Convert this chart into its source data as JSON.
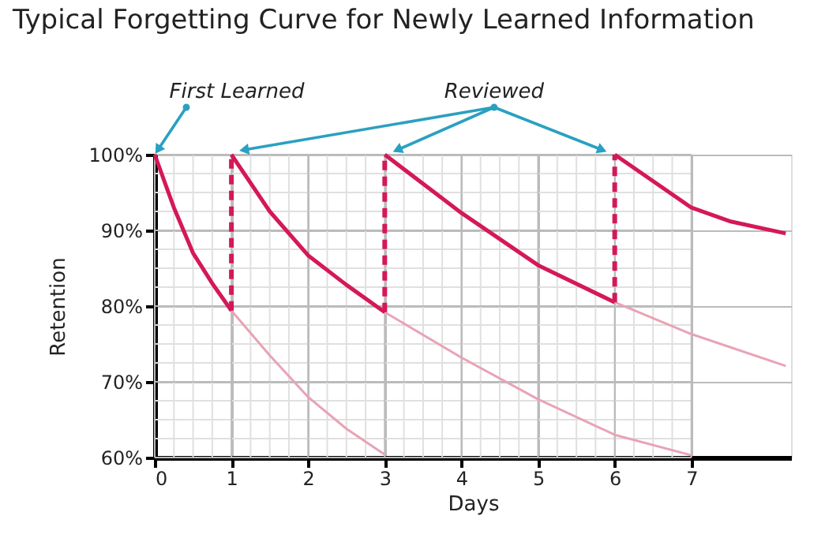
{
  "chart_data": {
    "type": "line",
    "title": "Typical Forgetting Curve for Newly Learned Information",
    "xlabel": "Days",
    "ylabel": "Retention",
    "xlim": [
      0,
      8.3
    ],
    "ylim": [
      60,
      100
    ],
    "xticks": [
      0,
      {
        "value": 0.25,
        "label": null
      },
      {
        "value": 0.5,
        "label": null
      },
      {
        "value": 0.75,
        "label": null
      },
      1,
      {
        "value": 1.25,
        "label": null
      },
      {
        "value": 1.5,
        "label": null
      },
      {
        "value": 1.75,
        "label": null
      },
      2,
      {
        "value": 2.25,
        "label": null
      },
      {
        "value": 2.5,
        "label": null
      },
      {
        "value": 2.75,
        "label": null
      },
      3,
      {
        "value": 3.25,
        "label": null
      },
      {
        "value": 3.5,
        "label": null
      },
      {
        "value": 3.75,
        "label": null
      },
      4,
      {
        "value": 4.25,
        "label": null
      },
      {
        "value": 4.5,
        "label": null
      },
      {
        "value": 4.75,
        "label": null
      },
      5,
      {
        "value": 5.25,
        "label": null
      },
      {
        "value": 5.5,
        "label": null
      },
      {
        "value": 5.75,
        "label": null
      },
      6,
      {
        "value": 6.25,
        "label": null
      },
      {
        "value": 6.5,
        "label": null
      },
      {
        "value": 6.75,
        "label": null
      },
      7
    ],
    "yticks": [
      {
        "value": 60,
        "label": "60%"
      },
      {
        "value": 62.5,
        "label": null
      },
      {
        "value": 65,
        "label": null
      },
      {
        "value": 67.5,
        "label": null
      },
      {
        "value": 70,
        "label": "70%"
      },
      {
        "value": 72.5,
        "label": null
      },
      {
        "value": 75,
        "label": null
      },
      {
        "value": 77.5,
        "label": null
      },
      {
        "value": 80,
        "label": "80%"
      },
      {
        "value": 82.5,
        "label": null
      },
      {
        "value": 85,
        "label": null
      },
      {
        "value": 87.5,
        "label": null
      },
      {
        "value": 90,
        "label": "90%"
      },
      {
        "value": 92.5,
        "label": null
      },
      {
        "value": 95,
        "label": null
      },
      {
        "value": 97.5,
        "label": null
      },
      {
        "value": 100,
        "label": "100%"
      }
    ],
    "grid": true,
    "line_style": "solid",
    "marker": "none",
    "annotations": [
      {
        "text": "First Learned",
        "x": 0,
        "y": 100
      },
      "Reviewed"
    ],
    "series": [
      {
        "color": "#e8a3b5",
        "x": [
          1,
          1.5,
          2,
          2.5,
          3
        ],
        "values": [
          79.4,
          73.5,
          68,
          63.8,
          60.4
        ]
      },
      {
        "color": "#e8a3b5",
        "x": [
          3,
          4,
          5,
          6,
          7
        ],
        "values": [
          79.2,
          73.2,
          67.7,
          63,
          60.3
        ]
      },
      {
        "color": "#e8a3b5",
        "x": [
          6,
          7,
          8.23
        ],
        "values": [
          80.5,
          76.3,
          72.1
        ]
      },
      {
        "color": "#d4185a",
        "x": [
          0,
          0.25,
          0.5,
          0.75,
          1
        ],
        "values": [
          100,
          93,
          87,
          83,
          79.4
        ]
      },
      {
        "color": "#d4185a",
        "x": [
          1,
          1.5,
          2,
          2.5,
          3
        ],
        "values": [
          100,
          92.5,
          86.7,
          82.8,
          79.2
        ]
      },
      {
        "color": "#d4185a",
        "x": [
          3,
          4,
          5,
          6
        ],
        "values": [
          100,
          92.3,
          85.4,
          80.5
        ]
      },
      {
        "color": "#d4185a",
        "x": [
          6,
          7,
          7.5,
          8.23
        ],
        "values": [
          100,
          93,
          91.2,
          89.6
        ]
      },
      {
        "color": "#d4185a",
        "line_style": "dashed",
        "x": [
          1,
          1
        ],
        "values": [
          79.4,
          100
        ]
      },
      {
        "color": "#d4185a",
        "line_style": "dashed",
        "x": [
          3,
          3
        ],
        "values": [
          79.2,
          100
        ]
      },
      {
        "color": "#d4185a",
        "line_style": "dashed",
        "x": [
          6,
          6
        ],
        "values": [
          80.5,
          100
        ]
      }
    ]
  }
}
